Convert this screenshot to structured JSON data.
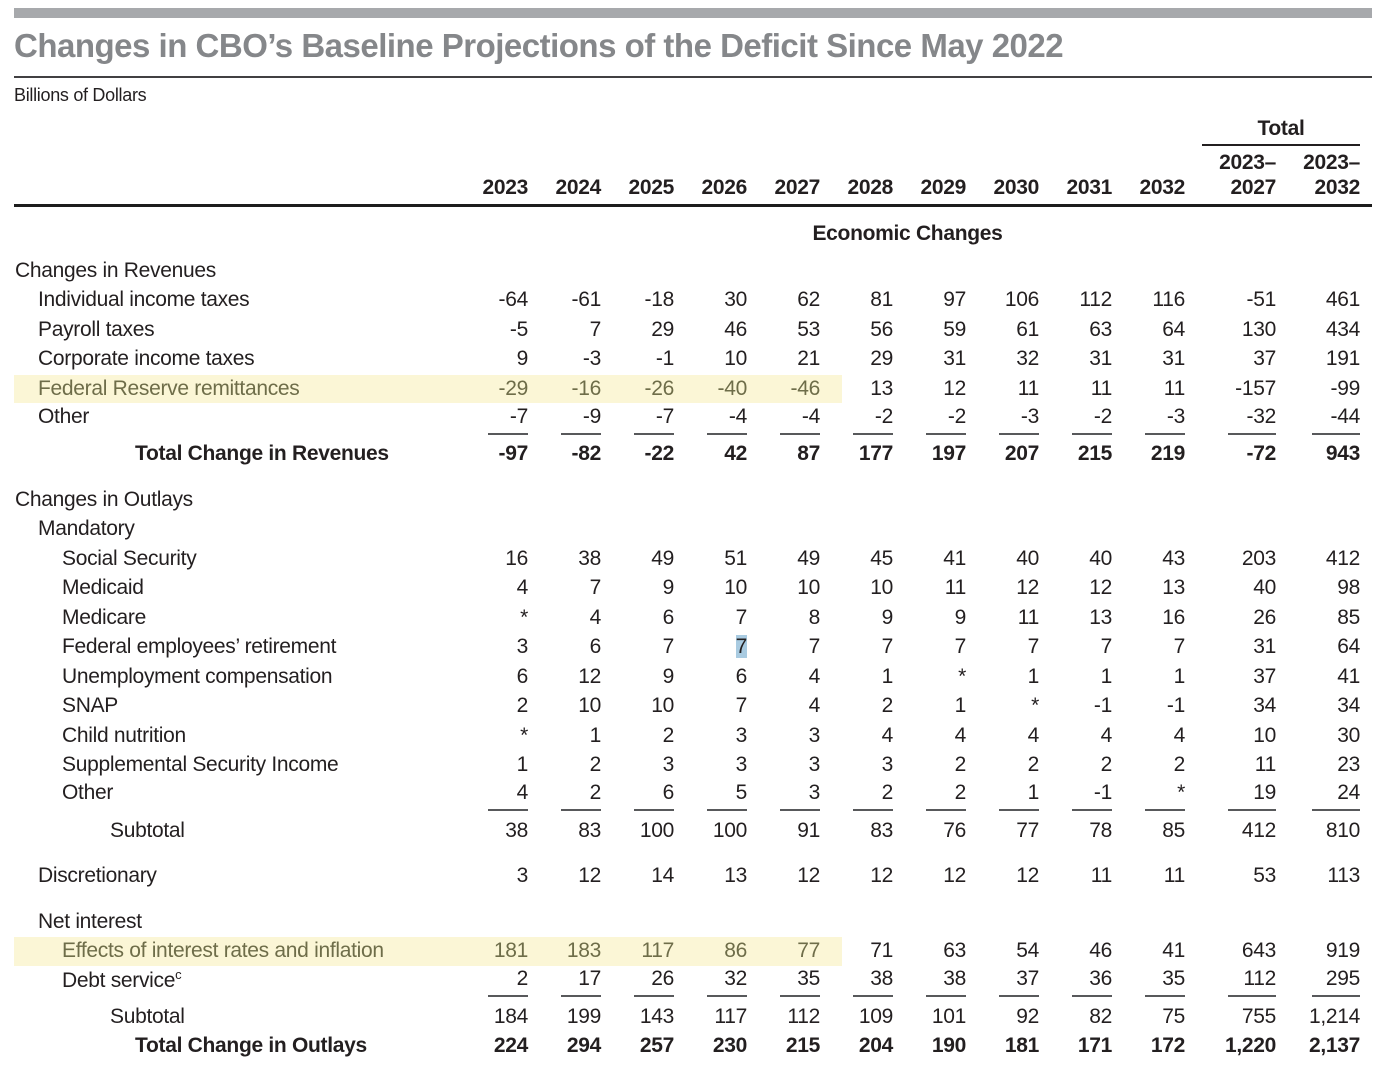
{
  "title": "Changes in CBO’s Baseline Projections of the Deficit Since May 2022",
  "subtitle": "Billions of Dollars",
  "colors": {
    "accent_bar": "#a7a9ac",
    "title_gray": "#85878a",
    "row_highlight_yellow": "#fbf6d6",
    "highlight_text_olive": "#6e6d49",
    "text_selection_blue": "#a9cbe1"
  },
  "table": {
    "total_label": "Total",
    "year_columns": [
      "2023",
      "2024",
      "2025",
      "2026",
      "2027",
      "2028",
      "2029",
      "2030",
      "2031",
      "2032"
    ],
    "total_columns": [
      [
        "2023–",
        "2027"
      ],
      [
        "2023–",
        "2032"
      ]
    ],
    "section_banner": "Economic Changes",
    "rows": [
      {
        "label": "Changes in Revenues",
        "indent": 0,
        "values": []
      },
      {
        "label": "Individual income taxes",
        "indent": 1,
        "values": [
          "-64",
          "-61",
          "-18",
          "30",
          "62",
          "81",
          "97",
          "106",
          "112",
          "116",
          "-51",
          "461"
        ]
      },
      {
        "label": "Payroll taxes",
        "indent": 1,
        "values": [
          "-5",
          "7",
          "29",
          "46",
          "53",
          "56",
          "59",
          "61",
          "63",
          "64",
          "130",
          "434"
        ]
      },
      {
        "label": "Corporate income taxes",
        "indent": 1,
        "values": [
          "9",
          "-3",
          "-1",
          "10",
          "21",
          "29",
          "31",
          "32",
          "31",
          "31",
          "37",
          "191"
        ]
      },
      {
        "label": "Federal Reserve remittances",
        "indent": 1,
        "highlight": true,
        "values": [
          "-29",
          "-16",
          "-26",
          "-40",
          "-46",
          "13",
          "12",
          "11",
          "11",
          "11",
          "-157",
          "-99"
        ]
      },
      {
        "label": "Other",
        "indent": 1,
        "sumline": true,
        "values": [
          "-7",
          "-9",
          "-7",
          "-4",
          "-4",
          "-2",
          "-2",
          "-3",
          "-2",
          "-3",
          "-32",
          "-44"
        ]
      },
      {
        "label": "Total Change in Revenues",
        "indent": 4,
        "bold": true,
        "values": [
          "-97",
          "-82",
          "-22",
          "42",
          "87",
          "177",
          "197",
          "207",
          "215",
          "219",
          "-72",
          "943"
        ]
      },
      {
        "spacer": true
      },
      {
        "label": "Changes in Outlays",
        "indent": 0,
        "values": []
      },
      {
        "label": "Mandatory",
        "indent": 1,
        "values": []
      },
      {
        "label": "Social Security",
        "indent": 2,
        "values": [
          "16",
          "38",
          "49",
          "51",
          "49",
          "45",
          "41",
          "40",
          "40",
          "43",
          "203",
          "412"
        ]
      },
      {
        "label": "Medicaid",
        "indent": 2,
        "values": [
          "4",
          "7",
          "9",
          "10",
          "10",
          "10",
          "11",
          "12",
          "12",
          "13",
          "40",
          "98"
        ]
      },
      {
        "label": "Medicare",
        "indent": 2,
        "values": [
          "*",
          "4",
          "6",
          "7",
          "8",
          "9",
          "9",
          "11",
          "13",
          "16",
          "26",
          "85"
        ]
      },
      {
        "label": "Federal employees’ retirement",
        "indent": 2,
        "selected_col": 3,
        "values": [
          "3",
          "6",
          "7",
          "7",
          "7",
          "7",
          "7",
          "7",
          "7",
          "7",
          "31",
          "64"
        ]
      },
      {
        "label": "Unemployment compensation",
        "indent": 2,
        "values": [
          "6",
          "12",
          "9",
          "6",
          "4",
          "1",
          "*",
          "1",
          "1",
          "1",
          "37",
          "41"
        ]
      },
      {
        "label": "SNAP",
        "indent": 2,
        "values": [
          "2",
          "10",
          "10",
          "7",
          "4",
          "2",
          "1",
          "*",
          "-1",
          "-1",
          "34",
          "34"
        ]
      },
      {
        "label": "Child nutrition",
        "indent": 2,
        "values": [
          "*",
          "1",
          "2",
          "3",
          "3",
          "4",
          "4",
          "4",
          "4",
          "4",
          "10",
          "30"
        ]
      },
      {
        "label": "Supplemental Security Income",
        "indent": 2,
        "values": [
          "1",
          "2",
          "3",
          "3",
          "3",
          "3",
          "2",
          "2",
          "2",
          "2",
          "11",
          "23"
        ]
      },
      {
        "label": "Other",
        "indent": 2,
        "sumline": true,
        "values": [
          "4",
          "2",
          "6",
          "5",
          "3",
          "2",
          "2",
          "1",
          "-1",
          "*",
          "19",
          "24"
        ]
      },
      {
        "label": "Subtotal",
        "indent": 3,
        "values": [
          "38",
          "83",
          "100",
          "100",
          "91",
          "83",
          "76",
          "77",
          "78",
          "85",
          "412",
          "810"
        ]
      },
      {
        "spacer": true
      },
      {
        "label": "Discretionary",
        "indent": 1,
        "values": [
          "3",
          "12",
          "14",
          "13",
          "12",
          "12",
          "12",
          "12",
          "11",
          "11",
          "53",
          "113"
        ]
      },
      {
        "spacer": true
      },
      {
        "label": "Net interest",
        "indent": 1,
        "values": []
      },
      {
        "label": "Effects of interest rates and inflation",
        "indent": 2,
        "highlight": true,
        "values": [
          "181",
          "183",
          "117",
          "86",
          "77",
          "71",
          "63",
          "54",
          "46",
          "41",
          "643",
          "919"
        ]
      },
      {
        "label": "Debt service",
        "sup": "c",
        "indent": 2,
        "sumline": true,
        "values": [
          "2",
          "17",
          "26",
          "32",
          "35",
          "38",
          "38",
          "37",
          "36",
          "35",
          "112",
          "295"
        ]
      },
      {
        "label": "Subtotal",
        "indent": 3,
        "values": [
          "184",
          "199",
          "143",
          "117",
          "112",
          "109",
          "101",
          "92",
          "82",
          "75",
          "755",
          "1,214"
        ]
      },
      {
        "label": "Total Change in Outlays",
        "indent": 4,
        "bold": true,
        "values": [
          "224",
          "294",
          "257",
          "230",
          "215",
          "204",
          "190",
          "181",
          "171",
          "172",
          "1,220",
          "2,137"
        ]
      }
    ]
  }
}
